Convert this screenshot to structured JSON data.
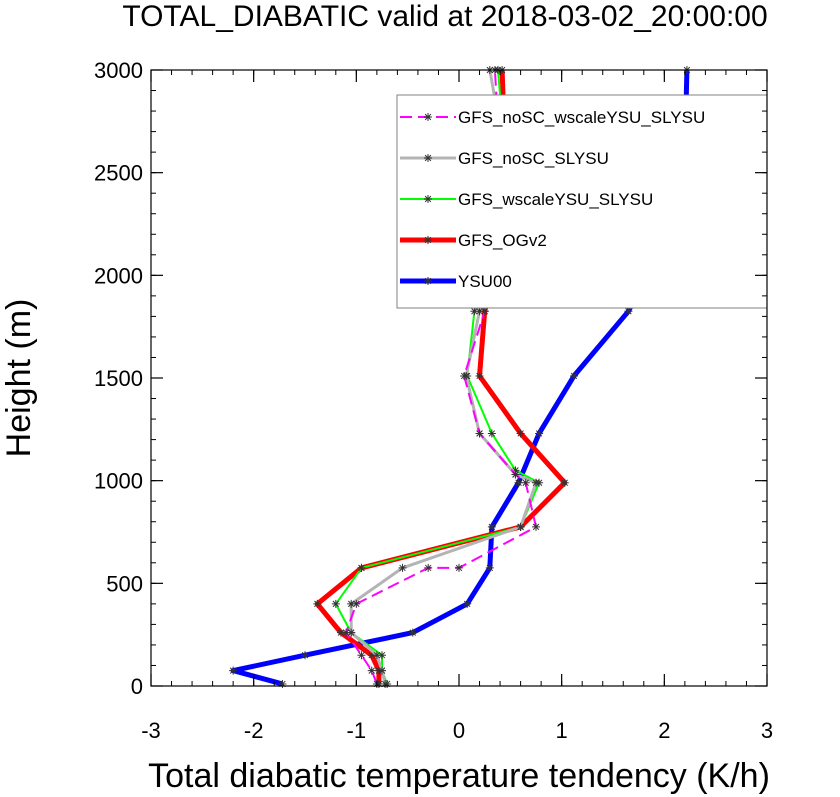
{
  "chart_data": {
    "type": "line",
    "title": "TOTAL_DIABATIC valid at 2018-03-02_20:00:00",
    "xlabel": "Total diabatic temperature tendency (K/h)",
    "ylabel": "Height (m)",
    "xlim": [
      -3,
      3
    ],
    "ylim": [
      0,
      3000
    ],
    "xticks": [
      -3,
      -2,
      -1,
      0,
      1,
      2,
      3
    ],
    "yticks": [
      0,
      500,
      1000,
      1500,
      2000,
      2500,
      3000
    ],
    "grid": false,
    "legend_position": "top-right",
    "series": [
      {
        "name": "GFS_noSC_wscaleYSU_SLYSU",
        "color": "#ff00ff",
        "dash": "dashed",
        "width": 2,
        "points": [
          {
            "x": -0.8,
            "y": 10
          },
          {
            "x": -0.85,
            "y": 75
          },
          {
            "x": -0.95,
            "y": 150
          },
          {
            "x": -1.1,
            "y": 260
          },
          {
            "x": -1.0,
            "y": 400
          },
          {
            "x": -0.3,
            "y": 575
          },
          {
            "x": 0.0,
            "y": 575
          },
          {
            "x": 0.75,
            "y": 775
          },
          {
            "x": 0.65,
            "y": 990
          },
          {
            "x": 0.55,
            "y": 1030
          },
          {
            "x": 0.2,
            "y": 1230
          },
          {
            "x": 0.05,
            "y": 1510
          },
          {
            "x": 0.25,
            "y": 1825
          },
          {
            "x": 0.35,
            "y": 2180
          },
          {
            "x": 0.4,
            "y": 2580
          },
          {
            "x": 0.35,
            "y": 3000
          }
        ]
      },
      {
        "name": "GFS_noSC_SLYSU",
        "color": "#b4b4b4",
        "dash": "solid",
        "width": 3,
        "points": [
          {
            "x": -0.72,
            "y": 10
          },
          {
            "x": -0.75,
            "y": 75
          },
          {
            "x": -0.8,
            "y": 150
          },
          {
            "x": -1.05,
            "y": 260
          },
          {
            "x": -1.05,
            "y": 400
          },
          {
            "x": -0.55,
            "y": 575
          },
          {
            "x": 0.6,
            "y": 775
          },
          {
            "x": 0.75,
            "y": 990
          },
          {
            "x": 0.55,
            "y": 1030
          },
          {
            "x": 0.2,
            "y": 1230
          },
          {
            "x": 0.07,
            "y": 1510
          },
          {
            "x": 0.2,
            "y": 1825
          },
          {
            "x": 0.3,
            "y": 2180
          },
          {
            "x": 0.45,
            "y": 2580
          },
          {
            "x": 0.3,
            "y": 3000
          }
        ]
      },
      {
        "name": "GFS_wscaleYSU_SLYSU",
        "color": "#00ff00",
        "dash": "solid",
        "width": 2,
        "points": [
          {
            "x": -0.7,
            "y": 10
          },
          {
            "x": -0.75,
            "y": 75
          },
          {
            "x": -0.75,
            "y": 150
          },
          {
            "x": -1.05,
            "y": 260
          },
          {
            "x": -1.2,
            "y": 400
          },
          {
            "x": -0.95,
            "y": 575
          },
          {
            "x": 0.6,
            "y": 775
          },
          {
            "x": 0.78,
            "y": 990
          },
          {
            "x": 0.55,
            "y": 1050
          },
          {
            "x": 0.32,
            "y": 1230
          },
          {
            "x": 0.08,
            "y": 1510
          },
          {
            "x": 0.15,
            "y": 1825
          },
          {
            "x": 0.3,
            "y": 2180
          },
          {
            "x": 0.45,
            "y": 2580
          },
          {
            "x": 0.38,
            "y": 3000
          }
        ]
      },
      {
        "name": "GFS_OGv2",
        "color": "#ff0000",
        "dash": "solid",
        "width": 5,
        "points": [
          {
            "x": -0.78,
            "y": 10
          },
          {
            "x": -0.78,
            "y": 75
          },
          {
            "x": -0.85,
            "y": 150
          },
          {
            "x": -1.15,
            "y": 260
          },
          {
            "x": -1.38,
            "y": 400
          },
          {
            "x": -0.95,
            "y": 575
          },
          {
            "x": 0.6,
            "y": 775
          },
          {
            "x": 1.03,
            "y": 990
          },
          {
            "x": 0.6,
            "y": 1230
          },
          {
            "x": 0.2,
            "y": 1510
          },
          {
            "x": 0.25,
            "y": 1825
          },
          {
            "x": 0.4,
            "y": 2180
          },
          {
            "x": 0.45,
            "y": 2580
          },
          {
            "x": 0.42,
            "y": 3000
          }
        ]
      },
      {
        "name": "YSU00",
        "color": "#0000ff",
        "dash": "solid",
        "width": 5,
        "points": [
          {
            "x": -1.72,
            "y": 10
          },
          {
            "x": -2.2,
            "y": 75
          },
          {
            "x": -1.5,
            "y": 150
          },
          {
            "x": -0.45,
            "y": 260
          },
          {
            "x": 0.08,
            "y": 400
          },
          {
            "x": 0.3,
            "y": 575
          },
          {
            "x": 0.32,
            "y": 775
          },
          {
            "x": 0.58,
            "y": 990
          },
          {
            "x": 0.78,
            "y": 1230
          },
          {
            "x": 1.12,
            "y": 1510
          },
          {
            "x": 1.65,
            "y": 1825
          },
          {
            "x": 2.02,
            "y": 2180
          },
          {
            "x": 2.2,
            "y": 2580
          },
          {
            "x": 2.22,
            "y": 3000
          }
        ]
      }
    ]
  }
}
